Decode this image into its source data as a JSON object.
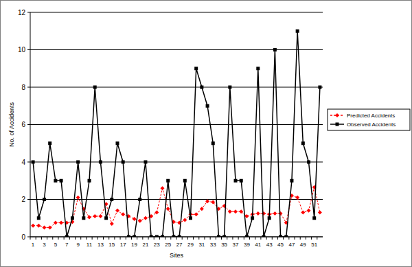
{
  "chart_data": {
    "type": "line",
    "x_label": "Sites",
    "y_label": "No. of Accidents",
    "categories": [
      "1",
      null,
      "3",
      null,
      "5",
      null,
      "7",
      null,
      "9",
      null,
      "11",
      null,
      "13",
      null,
      "15",
      null,
      "17",
      null,
      "19",
      null,
      "21",
      null,
      "23",
      null,
      "25",
      null,
      "27",
      null,
      "29",
      null,
      "31",
      null,
      "33",
      null,
      "35",
      null,
      "37",
      null,
      "39",
      null,
      "41",
      null,
      "43",
      null,
      "45",
      null,
      "47",
      null,
      "49",
      null,
      "51",
      null
    ],
    "series": [
      {
        "name": "Predicted Accidents",
        "color": "#ff0000",
        "marker": "diamond",
        "line_style": "dashed",
        "values": [
          0.6,
          0.6,
          0.5,
          0.5,
          0.75,
          0.75,
          0.75,
          0.8,
          2.1,
          1.5,
          1.05,
          1.1,
          1.1,
          1.75,
          0.7,
          1.4,
          1.2,
          1.1,
          0.95,
          0.85,
          1.0,
          1.1,
          1.3,
          2.6,
          1.5,
          0.8,
          0.75,
          0.9,
          1.2,
          1.2,
          1.5,
          1.9,
          1.85,
          1.5,
          1.65,
          1.35,
          1.35,
          1.35,
          1.1,
          1.2,
          1.25,
          1.25,
          1.2,
          1.25,
          1.25,
          0.75,
          2.2,
          2.1,
          1.3,
          1.4,
          2.65,
          1.3
        ]
      },
      {
        "name": "Observed Accidents",
        "color": "#000000",
        "marker": "square",
        "line_style": "solid",
        "values": [
          4,
          1,
          2,
          5,
          3,
          3,
          0,
          1,
          4,
          1,
          3,
          8,
          4,
          1,
          2,
          5,
          4,
          0,
          0,
          2,
          4,
          0,
          0,
          0,
          3,
          0,
          0,
          3,
          1,
          9,
          8,
          7,
          5,
          0,
          0,
          8,
          3,
          3,
          0,
          1,
          9,
          0,
          1,
          10,
          0,
          0,
          3,
          11,
          5,
          4,
          1,
          8
        ]
      }
    ],
    "ylim": [
      0,
      12
    ],
    "yticks": [
      0,
      2,
      4,
      6,
      8,
      10,
      12
    ],
    "grid": true,
    "legend": "right"
  }
}
